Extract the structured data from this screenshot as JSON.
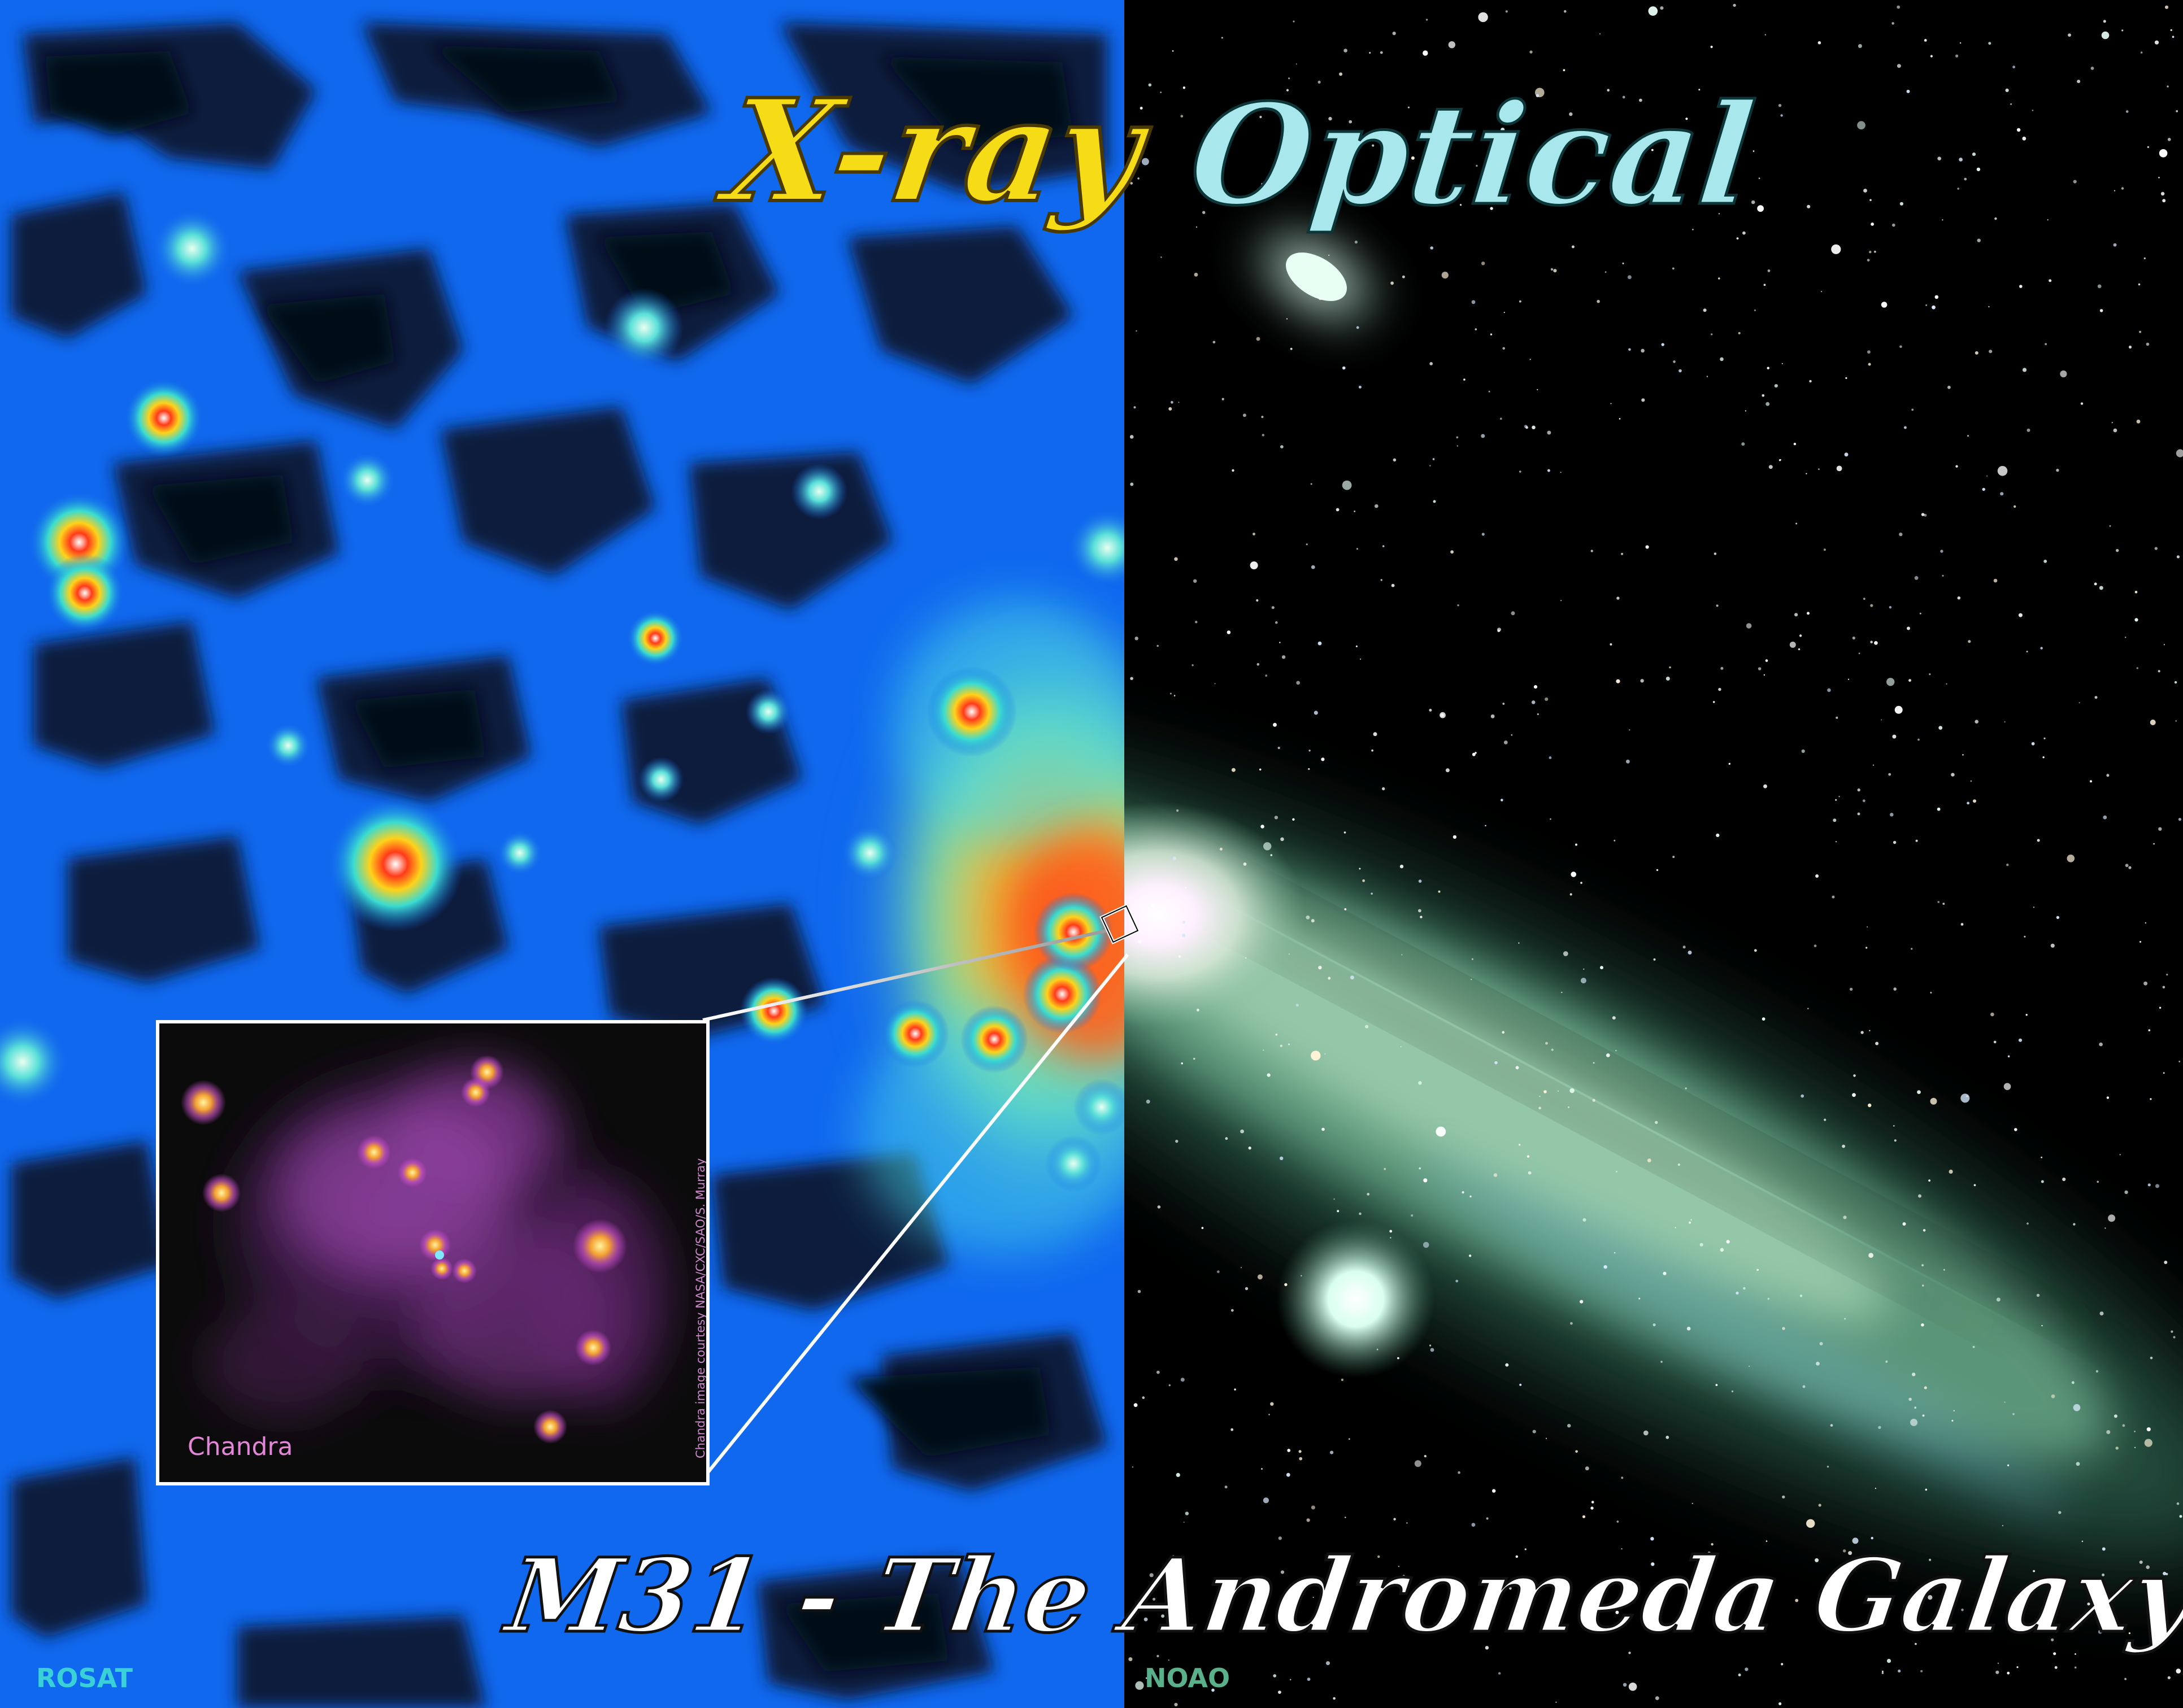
{
  "titles": {
    "xray": "X-ray",
    "optical": "Optical",
    "main": "M31 - The Andromeda Galaxy"
  },
  "credits": {
    "left": "ROSAT",
    "right": "NOAO"
  },
  "inset": {
    "label": "Chandra",
    "courtesy": "Chandra image courtesy NASA/CXC/SAO/S. Murray"
  },
  "colors": {
    "xray_background": "#1068ee",
    "xray_dark": "#081838",
    "xray_title": "#f6dc16",
    "optical_title": "#a8e8ec",
    "galaxy_core": "#fff4ff",
    "galaxy_disk": "#8fc8a0",
    "chandra_glow": "#c864d8",
    "credit_rosat": "#3ad0d8",
    "credit_noao": "#5ab08a"
  }
}
